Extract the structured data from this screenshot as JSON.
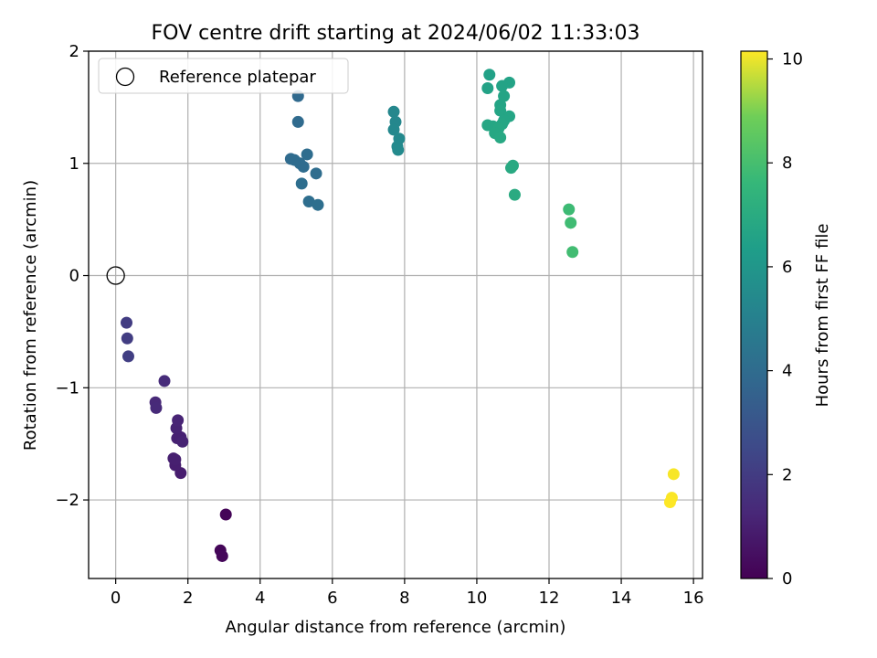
{
  "chart_data": {
    "type": "scatter",
    "title": "FOV centre drift starting at 2024/06/02 11:33:03",
    "xlabel": "Angular distance from reference (arcmin)",
    "ylabel": "Rotation from reference (arcmin)",
    "xlim": [
      -0.75,
      16.25
    ],
    "ylim": [
      -2.7,
      2.0
    ],
    "xticks": [
      0,
      2,
      4,
      6,
      8,
      10,
      12,
      14,
      16
    ],
    "yticks": [
      -2,
      -1,
      0,
      1,
      2
    ],
    "ytick_labels": [
      "−2",
      "−1",
      "0",
      "1",
      "2"
    ],
    "grid": true,
    "legend": {
      "position": "top-left",
      "label": "Reference platepar"
    },
    "reference_point": {
      "x": 0,
      "y": 0
    },
    "colorbar": {
      "label": "Hours from first FF file",
      "min": 0,
      "max": 10.15,
      "ticks": [
        0,
        2,
        4,
        6,
        8,
        10
      ],
      "colormap": "viridis"
    },
    "points": [
      {
        "x": 3.05,
        "y": -2.13,
        "c": 0.1
      },
      {
        "x": 2.9,
        "y": -2.45,
        "c": 0.15
      },
      {
        "x": 2.95,
        "y": -2.5,
        "c": 0.2
      },
      {
        "x": 1.8,
        "y": -1.76,
        "c": 0.9
      },
      {
        "x": 1.65,
        "y": -1.69,
        "c": 0.95
      },
      {
        "x": 1.6,
        "y": -1.63,
        "c": 1.0
      },
      {
        "x": 1.65,
        "y": -1.64,
        "c": 1.0
      },
      {
        "x": 1.7,
        "y": -1.45,
        "c": 1.05
      },
      {
        "x": 1.8,
        "y": -1.44,
        "c": 1.05
      },
      {
        "x": 1.85,
        "y": -1.48,
        "c": 1.1
      },
      {
        "x": 1.68,
        "y": -1.36,
        "c": 1.1
      },
      {
        "x": 1.72,
        "y": -1.29,
        "c": 1.15
      },
      {
        "x": 1.1,
        "y": -1.13,
        "c": 1.3
      },
      {
        "x": 1.12,
        "y": -1.18,
        "c": 1.35
      },
      {
        "x": 1.35,
        "y": -0.94,
        "c": 1.4
      },
      {
        "x": 0.3,
        "y": -0.42,
        "c": 2.0
      },
      {
        "x": 0.32,
        "y": -0.56,
        "c": 2.05
      },
      {
        "x": 0.35,
        "y": -0.72,
        "c": 2.1
      },
      {
        "x": 5.05,
        "y": 1.6,
        "c": 3.9
      },
      {
        "x": 5.05,
        "y": 1.37,
        "c": 3.95
      },
      {
        "x": 4.85,
        "y": 1.04,
        "c": 3.95
      },
      {
        "x": 4.95,
        "y": 1.03,
        "c": 3.98
      },
      {
        "x": 5.1,
        "y": 1.0,
        "c": 4.0
      },
      {
        "x": 5.2,
        "y": 0.97,
        "c": 4.0
      },
      {
        "x": 5.3,
        "y": 1.08,
        "c": 4.05
      },
      {
        "x": 5.55,
        "y": 0.91,
        "c": 4.05
      },
      {
        "x": 5.15,
        "y": 0.82,
        "c": 4.1
      },
      {
        "x": 5.35,
        "y": 0.66,
        "c": 4.1
      },
      {
        "x": 5.6,
        "y": 0.63,
        "c": 4.15
      },
      {
        "x": 7.7,
        "y": 1.46,
        "c": 5.3
      },
      {
        "x": 7.75,
        "y": 1.37,
        "c": 5.3
      },
      {
        "x": 7.7,
        "y": 1.3,
        "c": 5.35
      },
      {
        "x": 7.85,
        "y": 1.22,
        "c": 5.4
      },
      {
        "x": 7.8,
        "y": 1.15,
        "c": 5.4
      },
      {
        "x": 7.82,
        "y": 1.12,
        "c": 5.45
      },
      {
        "x": 10.35,
        "y": 1.79,
        "c": 6.5
      },
      {
        "x": 10.3,
        "y": 1.67,
        "c": 6.55
      },
      {
        "x": 10.9,
        "y": 1.72,
        "c": 6.6
      },
      {
        "x": 10.7,
        "y": 1.69,
        "c": 6.6
      },
      {
        "x": 10.75,
        "y": 1.6,
        "c": 6.65
      },
      {
        "x": 10.65,
        "y": 1.52,
        "c": 6.65
      },
      {
        "x": 10.65,
        "y": 1.47,
        "c": 6.7
      },
      {
        "x": 10.9,
        "y": 1.42,
        "c": 6.7
      },
      {
        "x": 10.75,
        "y": 1.38,
        "c": 6.7
      },
      {
        "x": 10.7,
        "y": 1.35,
        "c": 6.75
      },
      {
        "x": 10.3,
        "y": 1.34,
        "c": 6.75
      },
      {
        "x": 10.45,
        "y": 1.33,
        "c": 6.75
      },
      {
        "x": 10.6,
        "y": 1.31,
        "c": 6.8
      },
      {
        "x": 10.5,
        "y": 1.27,
        "c": 6.8
      },
      {
        "x": 10.65,
        "y": 1.23,
        "c": 6.85
      },
      {
        "x": 11.0,
        "y": 0.98,
        "c": 6.9
      },
      {
        "x": 10.95,
        "y": 0.96,
        "c": 6.9
      },
      {
        "x": 11.05,
        "y": 0.72,
        "c": 6.95
      },
      {
        "x": 12.55,
        "y": 0.59,
        "c": 7.8
      },
      {
        "x": 12.6,
        "y": 0.47,
        "c": 7.85
      },
      {
        "x": 12.65,
        "y": 0.21,
        "c": 7.9
      },
      {
        "x": 15.45,
        "y": -1.77,
        "c": 10.1
      },
      {
        "x": 15.4,
        "y": -1.98,
        "c": 10.12
      },
      {
        "x": 15.35,
        "y": -2.02,
        "c": 10.15
      }
    ]
  }
}
